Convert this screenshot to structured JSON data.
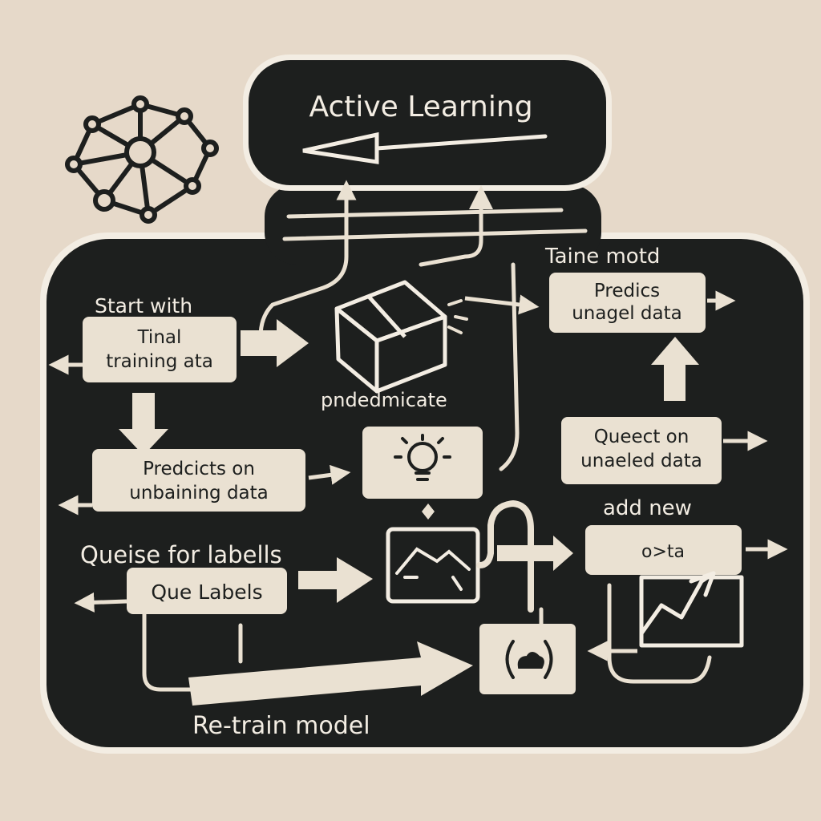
{
  "title": "Active Learning",
  "labels": {
    "start_with": "Start with",
    "initial_data_line1": "Tinal",
    "initial_data_line2": "training ata",
    "predicts_line1": "Predcicts on",
    "predicts_line2": "unbaining data",
    "queise": "Queise for labells",
    "que_labels": "Que Labels",
    "retrain": "Re-train model",
    "pndedmicate": "pndedmicate",
    "taine_motd": "Taine motd",
    "predics_line1": "Predics",
    "predics_line2": "unagel data",
    "queect_line1": "Queect on",
    "queect_line2": "unaeled data",
    "add_new": "add new",
    "ota": "o>ta"
  },
  "colors": {
    "paper": "#e6d9c9",
    "panel": "#1d1f1e",
    "card": "#eae1d2",
    "ink": "#1d1f1e",
    "outline": "#f3ede3"
  },
  "icons": [
    "network-logo-icon",
    "box-icon",
    "lightbulb-icon",
    "line-chart-icon",
    "cloud-sync-icon",
    "trend-chart-icon"
  ]
}
